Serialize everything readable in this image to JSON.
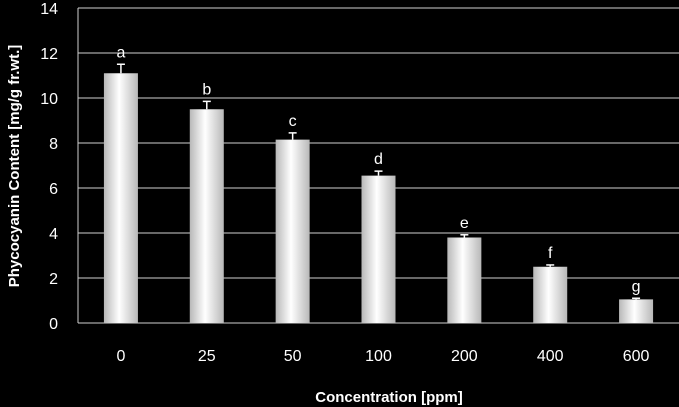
{
  "chart_data": {
    "type": "bar",
    "categories": [
      "0",
      "25",
      "50",
      "100",
      "200",
      "400",
      "600"
    ],
    "values": [
      11.1,
      9.5,
      8.15,
      6.55,
      3.8,
      2.5,
      1.05
    ],
    "errors": [
      0.4,
      0.35,
      0.3,
      0.2,
      0.12,
      0.08,
      0.05
    ],
    "significance_labels": [
      "a",
      "b",
      "c",
      "d",
      "e",
      "f",
      "g"
    ],
    "title": "",
    "xlabel": "Concentration [ppm]",
    "ylabel": "Phycocyanin Content [mg/g fr.wt.]",
    "ylim": [
      0,
      14
    ],
    "yticks": [
      "0",
      "2",
      "4",
      "6",
      "8",
      "10",
      "12",
      "14"
    ],
    "grid": true,
    "legend": "none",
    "colors": {
      "background": "#000000",
      "bar_light": "#ffffff",
      "bar_dark": "#b8b8b8",
      "grid": "#d0d0d0",
      "text": "#ffffff"
    }
  }
}
